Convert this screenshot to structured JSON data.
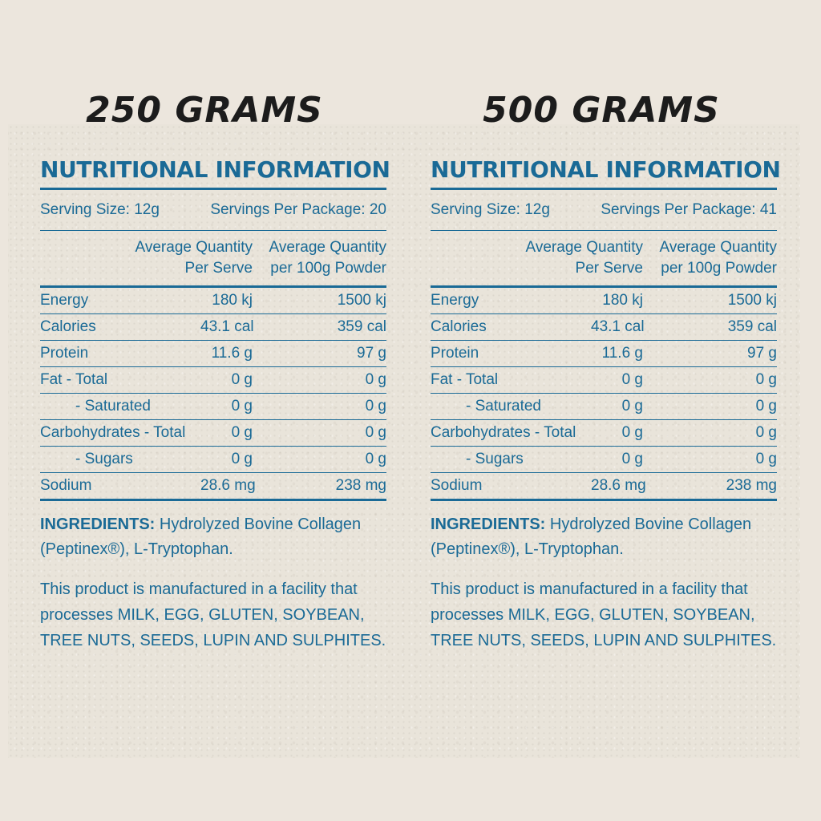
{
  "left": {
    "heading": "250 GRAMS",
    "title": "NUTRITIONAL INFORMATION",
    "serving_size": "Serving Size: 12g",
    "servings_per_package": "Servings Per Package: 20",
    "col1_line1": "Average Quantity",
    "col1_line2": "Per Serve",
    "col2_line1": "Average Quantity",
    "col2_line2": "per 100g Powder",
    "rows": [
      {
        "label": "Energy",
        "per_serve": "180 kj",
        "per_100g": "1500 kj"
      },
      {
        "label": "Calories",
        "per_serve": "43.1 cal",
        "per_100g": "359 cal"
      },
      {
        "label": "Protein",
        "per_serve": "11.6 g",
        "per_100g": "97 g"
      },
      {
        "label": "Fat - Total",
        "per_serve": "0 g",
        "per_100g": "0 g"
      },
      {
        "label": "- Saturated",
        "per_serve": "0 g",
        "per_100g": "0 g"
      },
      {
        "label": "Carbohydrates - Total",
        "per_serve": "0 g",
        "per_100g": "0 g"
      },
      {
        "label": "- Sugars",
        "per_serve": "0 g",
        "per_100g": "0 g"
      },
      {
        "label": "Sodium",
        "per_serve": "28.6 mg",
        "per_100g": "238 mg"
      }
    ],
    "ingredients_label": "INGREDIENTS:",
    "ingredients_text": "Hydrolyzed Bovine Collagen (Peptinex®), L-Tryptophan.",
    "allergen_text": "This product is manufactured in a facility that processes MILK, EGG, GLUTEN, SOYBEAN, TREE NUTS, SEEDS, LUPIN AND SULPHITES."
  },
  "right": {
    "heading": "500 GRAMS",
    "title": "NUTRITIONAL INFORMATION",
    "serving_size": "Serving Size: 12g",
    "servings_per_package": "Servings Per Package: 41",
    "col1_line1": "Average Quantity",
    "col1_line2": "Per Serve",
    "col2_line1": "Average Quantity",
    "col2_line2": "per 100g Powder",
    "rows": [
      {
        "label": "Energy",
        "per_serve": "180 kj",
        "per_100g": "1500 kj"
      },
      {
        "label": "Calories",
        "per_serve": "43.1 cal",
        "per_100g": "359 cal"
      },
      {
        "label": "Protein",
        "per_serve": "11.6 g",
        "per_100g": "97 g"
      },
      {
        "label": "Fat - Total",
        "per_serve": "0 g",
        "per_100g": "0 g"
      },
      {
        "label": "- Saturated",
        "per_serve": "0 g",
        "per_100g": "0 g"
      },
      {
        "label": "Carbohydrates - Total",
        "per_serve": "0 g",
        "per_100g": "0 g"
      },
      {
        "label": "- Sugars",
        "per_serve": "0 g",
        "per_100g": "0 g"
      },
      {
        "label": "Sodium",
        "per_serve": "28.6 mg",
        "per_100g": "238 mg"
      }
    ],
    "ingredients_label": "INGREDIENTS:",
    "ingredients_text": "Hydrolyzed Bovine Collagen (Peptinex®), L-Tryptophan.",
    "allergen_text": "This product is manufactured in a facility that processes MILK, EGG, GLUTEN, SOYBEAN, TREE NUTS, SEEDS, LUPIN AND SULPHITES."
  },
  "colors": {
    "text_blue": "#1a6a96",
    "heading_black": "#1c1c1c",
    "background": "#ece6dd"
  }
}
